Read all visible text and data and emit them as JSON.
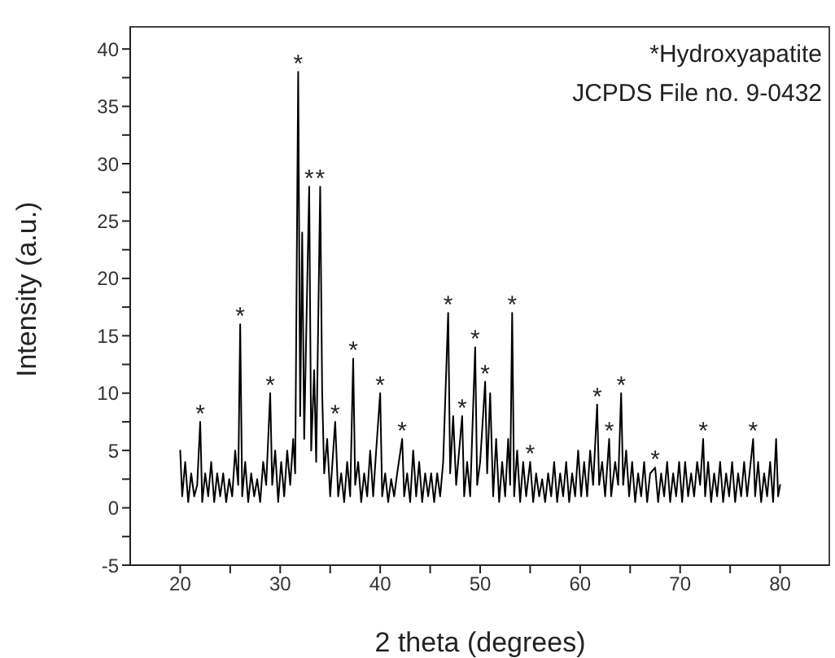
{
  "chart_data": {
    "type": "line",
    "xlabel": "2 theta (degrees)",
    "ylabel": "Intensity (a.u.)",
    "xlim": [
      15,
      85
    ],
    "ylim": [
      -5,
      42
    ],
    "xticks": [
      20,
      {
        "value": 25,
        "label": null
      },
      30,
      {
        "value": 35,
        "label": null
      },
      40,
      {
        "value": 45,
        "label": null
      },
      50,
      {
        "value": 55,
        "label": null
      },
      60,
      {
        "value": 65,
        "label": null
      },
      70,
      {
        "value": 75,
        "label": null
      },
      80
    ],
    "yticks": [
      -5,
      {
        "value": -2.5,
        "label": null
      },
      0,
      {
        "value": 2.5,
        "label": null
      },
      5,
      {
        "value": 7.5,
        "label": null
      },
      10,
      {
        "value": 12.5,
        "label": null
      },
      15,
      {
        "value": 17.5,
        "label": null
      },
      20,
      {
        "value": 22.5,
        "label": null
      },
      25,
      {
        "value": 27.5,
        "label": null
      },
      30,
      {
        "value": 32.5,
        "label": null
      },
      35,
      {
        "value": 37.5,
        "label": null
      },
      40
    ],
    "grid": false,
    "legend": false,
    "marker": "none",
    "line_style": "solid",
    "series": [
      {
        "color": "#000000",
        "x": [
          20.0,
          20.2,
          20.5,
          20.8,
          21.1,
          21.4,
          21.7,
          22.0,
          22.2,
          22.5,
          22.8,
          23.1,
          23.4,
          23.7,
          24.0,
          24.3,
          24.6,
          24.9,
          25.2,
          25.5,
          25.8,
          26.0,
          26.2,
          26.5,
          26.8,
          27.1,
          27.4,
          27.7,
          28.0,
          28.3,
          28.6,
          29.0,
          29.2,
          29.5,
          29.8,
          30.1,
          30.4,
          30.7,
          31.0,
          31.3,
          31.5,
          31.8,
          32.0,
          32.2,
          32.4,
          32.6,
          32.9,
          33.1,
          33.4,
          33.6,
          34.0,
          34.2,
          34.4,
          34.7,
          35.0,
          35.5,
          35.8,
          36.1,
          36.4,
          36.7,
          37.0,
          37.3,
          37.5,
          37.8,
          38.1,
          38.4,
          38.7,
          39.0,
          39.3,
          39.6,
          40.0,
          40.2,
          40.5,
          40.8,
          41.1,
          41.4,
          41.7,
          42.2,
          42.4,
          42.7,
          43.0,
          43.3,
          43.6,
          43.9,
          44.2,
          44.5,
          44.8,
          45.1,
          45.4,
          45.7,
          46.0,
          46.3,
          46.8,
          47.0,
          47.3,
          47.6,
          48.2,
          48.4,
          48.7,
          49.0,
          49.5,
          49.7,
          50.0,
          50.5,
          50.7,
          51.0,
          51.3,
          51.6,
          51.9,
          52.2,
          52.5,
          52.8,
          53.0,
          53.2,
          53.4,
          53.7,
          54.0,
          54.3,
          54.6,
          55.0,
          55.3,
          55.6,
          55.9,
          56.2,
          56.5,
          56.8,
          57.1,
          57.4,
          57.7,
          58.0,
          58.3,
          58.6,
          58.9,
          59.2,
          59.5,
          59.8,
          60.1,
          60.4,
          60.7,
          61.0,
          61.3,
          61.7,
          61.9,
          62.2,
          62.5,
          62.9,
          63.1,
          63.5,
          63.8,
          64.1,
          64.3,
          64.6,
          64.9,
          65.2,
          65.5,
          65.8,
          66.1,
          66.4,
          66.7,
          67.0,
          67.5,
          67.8,
          68.1,
          68.4,
          68.7,
          69.0,
          69.3,
          69.6,
          69.9,
          70.2,
          70.5,
          70.8,
          71.1,
          71.4,
          71.7,
          72.0,
          72.3,
          72.5,
          72.8,
          73.1,
          73.4,
          73.7,
          74.0,
          74.3,
          74.6,
          74.9,
          75.2,
          75.5,
          75.8,
          76.1,
          76.4,
          76.7,
          77.3,
          77.5,
          77.8,
          78.1,
          78.4,
          78.7,
          79.0,
          79.3,
          79.6,
          79.8,
          80.0
        ],
        "values": [
          5,
          1,
          4,
          0.5,
          3,
          1,
          2,
          7.5,
          0.5,
          3,
          1,
          4,
          0.5,
          3,
          1,
          3,
          0.5,
          2.5,
          1,
          5,
          2,
          16,
          1,
          4,
          0.5,
          3,
          1,
          2.5,
          0.5,
          4,
          2,
          10,
          2,
          5,
          0.5,
          4,
          1,
          5,
          2,
          6,
          3,
          38,
          8,
          24,
          6,
          15,
          28,
          5,
          12,
          4,
          28,
          10,
          3,
          6,
          1,
          7.5,
          1,
          3,
          0.5,
          4,
          1,
          13,
          2,
          4,
          0.5,
          3,
          1,
          5,
          1,
          5,
          10,
          1,
          3,
          0.5,
          2.5,
          1,
          3,
          6,
          1,
          3,
          0.5,
          5,
          1,
          4,
          0.5,
          3,
          1,
          3,
          0.5,
          3,
          1,
          4,
          17,
          3,
          8,
          2,
          8,
          1,
          4,
          1,
          14,
          2,
          4,
          11,
          3,
          10,
          1,
          6,
          0.5,
          4,
          1,
          6,
          2,
          17,
          1,
          5,
          0.5,
          4,
          1,
          4,
          0.5,
          3,
          1,
          2.5,
          0.5,
          3,
          1,
          4,
          0.5,
          3,
          1,
          4,
          0.5,
          3,
          1,
          5,
          1,
          4,
          1,
          5,
          2,
          9,
          2,
          4,
          1,
          6,
          1,
          4,
          2,
          10,
          2,
          5,
          1,
          4,
          0.5,
          3,
          1,
          4,
          0.5,
          3,
          3.5,
          0.5,
          3,
          1,
          4,
          0.5,
          3,
          1,
          4,
          0.5,
          4,
          1,
          3,
          1,
          4,
          2,
          6,
          1,
          4,
          0.5,
          3,
          1,
          4,
          0.5,
          3,
          1,
          4,
          0.5,
          3,
          1,
          4,
          1,
          6,
          1,
          4,
          0.5,
          3,
          1,
          4,
          0.5,
          6,
          1,
          2
        ]
      }
    ],
    "annotations": [
      "*Hydroxyapatite",
      "JCPDS File no. 9-0432",
      {
        "text": "*",
        "x": 22.0,
        "y": 7.5
      },
      {
        "text": "*",
        "x": 26.0,
        "y": 16
      },
      {
        "text": "*",
        "x": 29.0,
        "y": 10
      },
      {
        "text": "*",
        "x": 31.8,
        "y": 38
      },
      {
        "text": "*",
        "x": 32.9,
        "y": 28
      },
      {
        "text": "*",
        "x": 34.0,
        "y": 28
      },
      {
        "text": "*",
        "x": 35.5,
        "y": 7.5
      },
      {
        "text": "*",
        "x": 37.3,
        "y": 13
      },
      {
        "text": "*",
        "x": 40.0,
        "y": 10
      },
      {
        "text": "*",
        "x": 42.2,
        "y": 6
      },
      {
        "text": "*",
        "x": 46.8,
        "y": 17
      },
      {
        "text": "*",
        "x": 48.2,
        "y": 8
      },
      {
        "text": "*",
        "x": 49.5,
        "y": 14
      },
      {
        "text": "*",
        "x": 50.5,
        "y": 11
      },
      {
        "text": "*",
        "x": 53.2,
        "y": 17
      },
      {
        "text": "*",
        "x": 55.0,
        "y": 4
      },
      {
        "text": "*",
        "x": 61.7,
        "y": 9
      },
      {
        "text": "*",
        "x": 62.9,
        "y": 6
      },
      {
        "text": "*",
        "x": 64.1,
        "y": 10
      },
      {
        "text": "*",
        "x": 67.5,
        "y": 3.5
      },
      {
        "text": "*",
        "x": 72.3,
        "y": 6
      },
      {
        "text": "*",
        "x": 77.3,
        "y": 6
      }
    ]
  }
}
